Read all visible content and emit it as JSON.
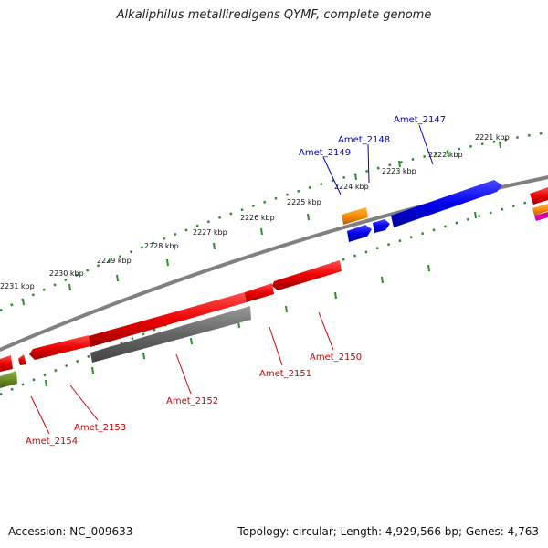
{
  "title": "Alkaliphilus metalliredigens QYMF, complete genome",
  "footer": {
    "accession": "Accession: NC_009633",
    "topology": "Topology: circular; Length: 4,929,566 bp; Genes: 4,763"
  },
  "ticks": [
    {
      "label": "2221 kbp"
    },
    {
      "label": "2222 kbp"
    },
    {
      "label": "2223 kbp"
    },
    {
      "label": "2224 kbp"
    },
    {
      "label": "2225 kbp"
    },
    {
      "label": "2226 kbp"
    },
    {
      "label": "2227 kbp"
    },
    {
      "label": "2228 kbp"
    },
    {
      "label": "2229 kbp"
    },
    {
      "label": "2230 kbp"
    },
    {
      "label": "2231 kbp"
    }
  ],
  "genes": {
    "forward": [
      {
        "id": "Amet_2147",
        "color": "#0000ee",
        "label_color": "#0000cc"
      },
      {
        "id": "Amet_2148",
        "color": "#0000ee",
        "label_color": "#0000cc"
      },
      {
        "id": "Amet_2149",
        "color": "#0000ee",
        "label_color": "#0000cc"
      }
    ],
    "reverse": [
      {
        "id": "Amet_2150",
        "color": "#ee0000",
        "label_color": "#cc0000"
      },
      {
        "id": "Amet_2151",
        "color": "#ee0000",
        "label_color": "#cc0000"
      },
      {
        "id": "Amet_2152",
        "color": "#666666",
        "label_color": "#cc0000"
      },
      {
        "id": "Amet_2153",
        "color": "#ee0000",
        "label_color": "#cc0000"
      },
      {
        "id": "Amet_2154",
        "color": "#ee0000",
        "label_color": "#cc0000"
      }
    ]
  },
  "colors": {
    "backbone": "#808080",
    "tick_dots": "#2e8b2e",
    "orange_feature": "#ff8c00",
    "olive_feature": "#6b8e23",
    "magenta_feature": "#dd00aa"
  }
}
